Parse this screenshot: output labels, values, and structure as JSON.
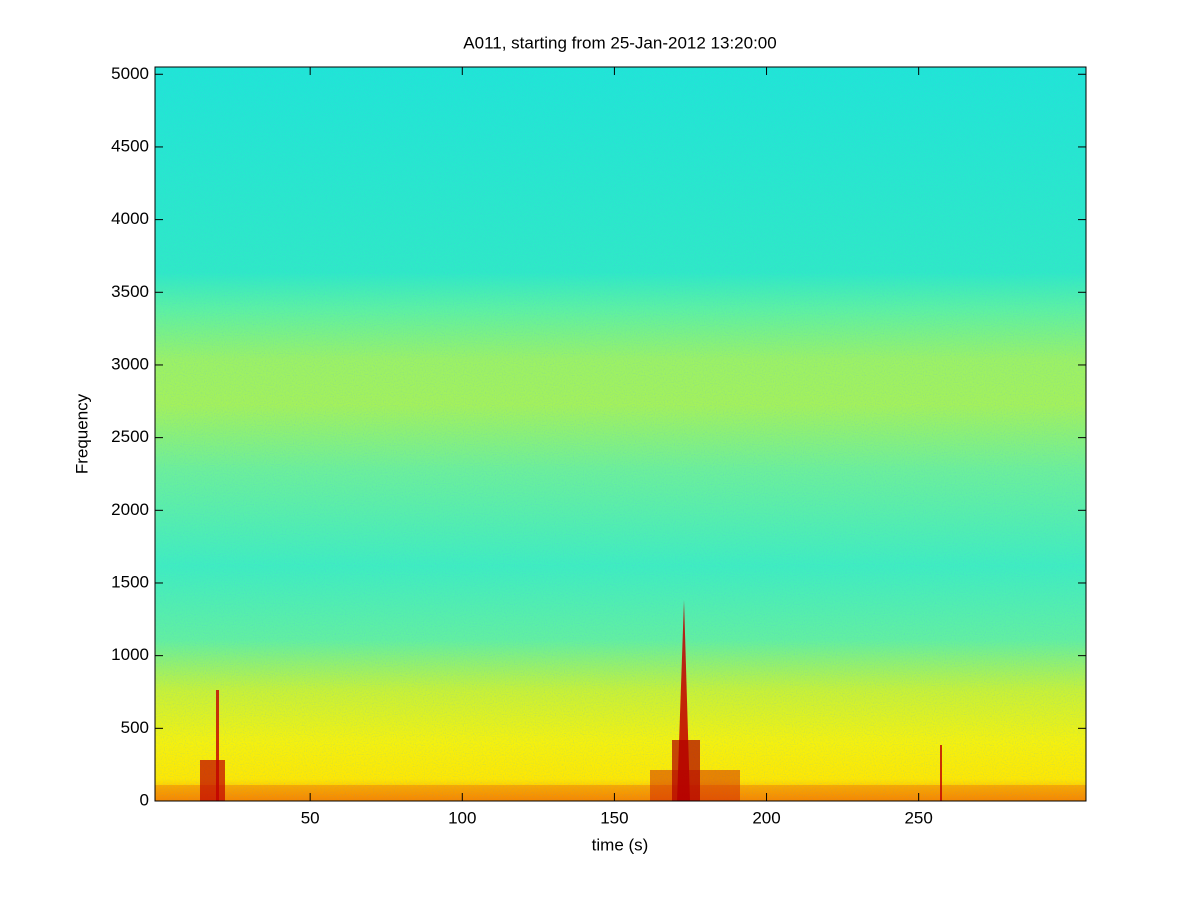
{
  "chart_data": {
    "type": "spectrogram",
    "title": "A011, starting from 25-Jan-2012 13:20:00",
    "xlabel": "time (s)",
    "ylabel": "Frequency",
    "xlim": [
      -1,
      305
    ],
    "ylim": [
      0,
      5050
    ],
    "xticks": [
      50,
      100,
      150,
      200,
      250
    ],
    "yticks": [
      0,
      500,
      1000,
      1500,
      2000,
      2500,
      3000,
      3500,
      4000,
      4500,
      5000
    ]
  }
}
